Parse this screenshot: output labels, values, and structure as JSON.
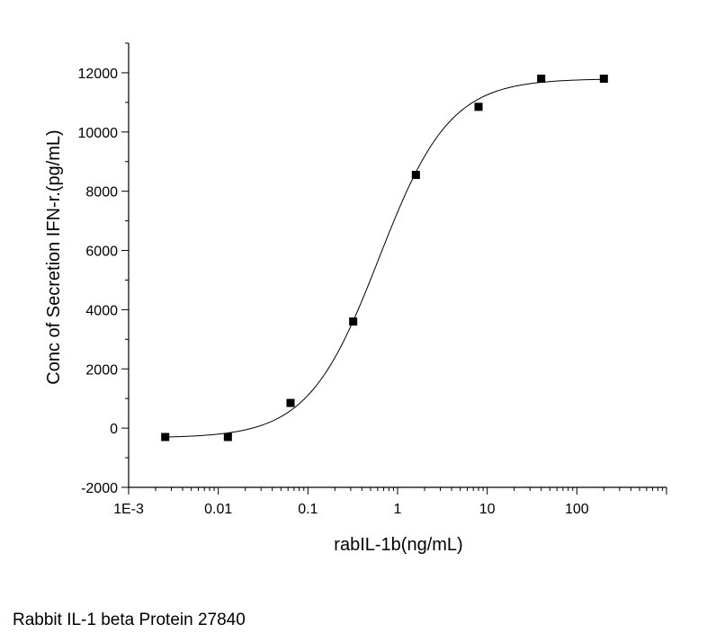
{
  "chart_data": {
    "type": "scatter",
    "title": "",
    "xlabel": "rabIL-1b(ng/mL)",
    "ylabel": "Conc of Secretion IFN-r.(pg/mL)",
    "x_scale": "log",
    "xlim": [
      0.001,
      1000
    ],
    "ylim": [
      -2000,
      13000
    ],
    "x_tick_labels": [
      "1E-3",
      "0.01",
      "0.1",
      "1",
      "10",
      "100"
    ],
    "y_tick_labels": [
      "-2000",
      "0",
      "2000",
      "4000",
      "6000",
      "8000",
      "10000",
      "12000"
    ],
    "grid": false,
    "legend": false,
    "series": [
      {
        "marker": "square",
        "color": "#000000",
        "x": [
          0.00256,
          0.0128,
          0.064,
          0.32,
          1.6,
          8,
          40,
          200
        ],
        "y": [
          -300,
          -300,
          850,
          3600,
          8550,
          10850,
          11800,
          11800
        ]
      }
    ],
    "fit_curve": {
      "model": "4PL",
      "color": "#000000",
      "bottom": -330,
      "top": 11800,
      "ec50": 0.62,
      "hill": 1.1
    }
  },
  "caption": "Rabbit IL-1 beta Protein 27840"
}
